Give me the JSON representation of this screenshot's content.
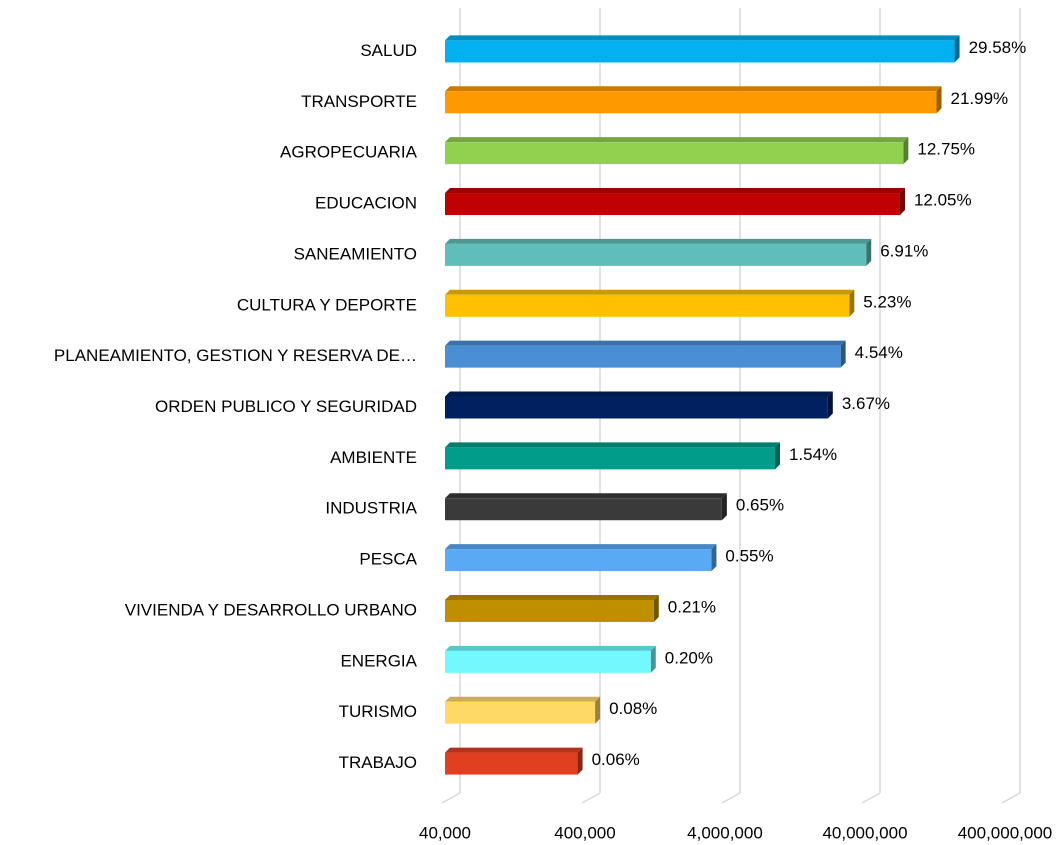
{
  "chart_data": {
    "type": "hbar",
    "categories": [
      "SALUD",
      "TRANSPORTE",
      "AGROPECUARIA",
      "EDUCACION",
      "SANEAMIENTO",
      "CULTURA Y DEPORTE",
      "PLANEAMIENTO, GESTION Y RESERVA DE…",
      "ORDEN PUBLICO Y SEGURIDAD",
      "AMBIENTE",
      "INDUSTRIA",
      "PESCA",
      "VIVIENDA Y DESARROLLO URBANO",
      "ENERGIA",
      "TURISMO",
      "TRABAJO"
    ],
    "values": [
      174500000,
      129700000,
      75200000,
      71100000,
      40800000,
      30900000,
      26800000,
      21700000,
      9100000,
      3800000,
      3200000,
      1240000,
      1180000,
      472000,
      354000
    ],
    "share_labels": [
      "29.58%",
      "21.99%",
      "12.75%",
      "12.05%",
      "6.91%",
      "5.23%",
      "4.54%",
      "3.67%",
      "1.54%",
      "0.65%",
      "0.55%",
      "0.21%",
      "0.20%",
      "0.08%",
      "0.06%"
    ],
    "colors": [
      "#00b0f0",
      "#ff9900",
      "#92d050",
      "#c00000",
      "#5fbfb8",
      "#ffc000",
      "#4a8fd6",
      "#002060",
      "#009e8a",
      "#3a3a3a",
      "#5aa9f5",
      "#bf8f00",
      "#72f8ff",
      "#ffd966",
      "#e04020"
    ],
    "xscale": "log",
    "xlim": [
      40000,
      400000000
    ],
    "xticks": [
      {
        "value": 40000,
        "label": "40,000"
      },
      {
        "value": 400000,
        "label": "400,000"
      },
      {
        "value": 4000000,
        "label": "4,000,000"
      },
      {
        "value": 40000000,
        "label": "40,000,000"
      },
      {
        "value": 400000000,
        "label": "400,000,000"
      }
    ],
    "grid": true
  }
}
